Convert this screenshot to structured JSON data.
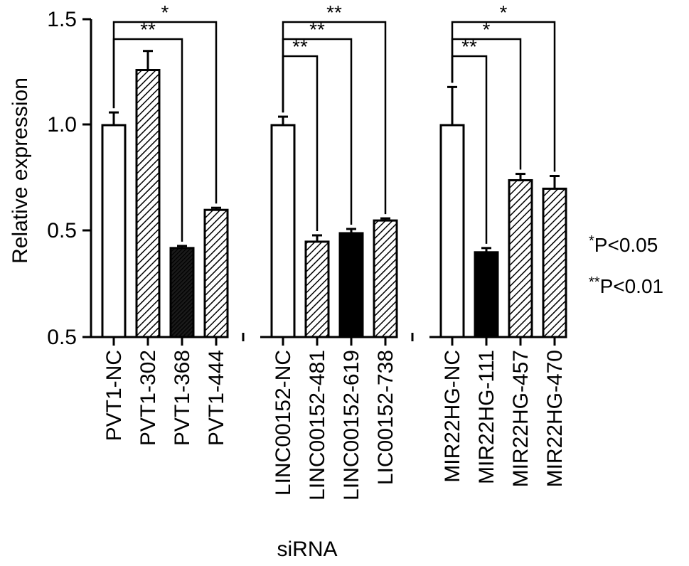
{
  "chart_data": {
    "type": "bar",
    "ylabel": "Relative expression",
    "xlabel": "siRNA",
    "yticks": [
      "0.5",
      "0.5",
      "1.0",
      "1.5"
    ],
    "ylim": [
      0,
      1.5
    ],
    "colors": {
      "open": "#ffffff",
      "hatched": "#a6a6a6",
      "solid": "#000000",
      "stroke": "#000000"
    },
    "groups": [
      {
        "bars": [
          {
            "label": "PVT1-NC",
            "value": 1.0,
            "error": 0.06,
            "fill": "open"
          },
          {
            "label": "PVT1-302",
            "value": 1.26,
            "error": 0.09,
            "fill": "hatched"
          },
          {
            "label": "PVT1-368",
            "value": 0.42,
            "error": 0.01,
            "fill": "dense"
          },
          {
            "label": "PVT1-444",
            "value": 0.6,
            "error": 0.01,
            "fill": "hatched"
          }
        ],
        "brackets": [
          {
            "to": 2,
            "label": "**"
          },
          {
            "to": 3,
            "label": "*"
          }
        ]
      },
      {
        "bars": [
          {
            "label": "LINC00152-NC",
            "value": 1.0,
            "error": 0.04,
            "fill": "open"
          },
          {
            "label": "LINC00152-481",
            "value": 0.45,
            "error": 0.03,
            "fill": "hatched"
          },
          {
            "label": "LINC00152-619",
            "value": 0.49,
            "error": 0.02,
            "fill": "solid"
          },
          {
            "label": "LIC00152-738",
            "value": 0.55,
            "error": 0.01,
            "fill": "hatched"
          }
        ],
        "brackets": [
          {
            "to": 1,
            "label": "**"
          },
          {
            "to": 2,
            "label": "**"
          },
          {
            "to": 3,
            "label": "**"
          }
        ]
      },
      {
        "bars": [
          {
            "label": "MIR22HG-NC",
            "value": 1.0,
            "error": 0.18,
            "fill": "open"
          },
          {
            "label": "MIR22HG-111",
            "value": 0.4,
            "error": 0.02,
            "fill": "solid"
          },
          {
            "label": "MIR22HG-457",
            "value": 0.74,
            "error": 0.03,
            "fill": "hatched"
          },
          {
            "label": "MIR22HG-470",
            "value": 0.7,
            "error": 0.06,
            "fill": "hatched"
          }
        ],
        "brackets": [
          {
            "to": 1,
            "label": "**"
          },
          {
            "to": 2,
            "label": "*"
          },
          {
            "to": 3,
            "label": "*"
          }
        ]
      }
    ]
  },
  "legend": {
    "sig1_stars": "*",
    "sig1_text": "P<0.05",
    "sig2_stars": "**",
    "sig2_text": "P<0.01"
  }
}
